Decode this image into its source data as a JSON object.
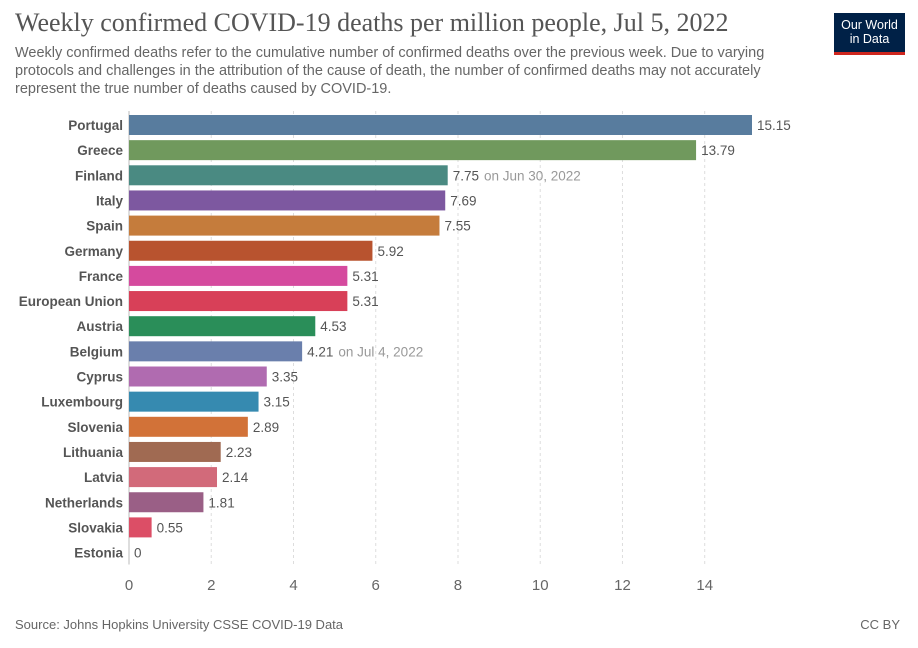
{
  "header": {
    "title": "Weekly confirmed COVID-19 deaths per million people, Jul 5, 2022",
    "subtitle": "Weekly confirmed deaths refer to the cumulative number of confirmed deaths over the previous week. Due to varying protocols and challenges in the attribution of the cause of death, the number of confirmed deaths may not accurately represent the true number of deaths caused by COVID-19.",
    "logo_line1": "Our World",
    "logo_line2": "in Data"
  },
  "footer": {
    "source": "Source: Johns Hopkins University CSSE COVID-19 Data",
    "license": "CC BY"
  },
  "chart_data": {
    "type": "bar",
    "orientation": "horizontal",
    "title": "Weekly confirmed COVID-19 deaths per million people, Jul 5, 2022",
    "xlabel": "",
    "ylabel": "",
    "xlim": [
      0,
      15.15
    ],
    "xticks": [
      0,
      2,
      4,
      6,
      8,
      10,
      12,
      14
    ],
    "grid": true,
    "categories": [
      "Portugal",
      "Greece",
      "Finland",
      "Italy",
      "Spain",
      "Germany",
      "France",
      "European Union",
      "Austria",
      "Belgium",
      "Cyprus",
      "Luxembourg",
      "Slovenia",
      "Lithuania",
      "Latvia",
      "Netherlands",
      "Slovakia",
      "Estonia"
    ],
    "values": [
      15.15,
      13.79,
      7.75,
      7.69,
      7.55,
      5.92,
      5.31,
      5.31,
      4.53,
      4.21,
      3.35,
      3.15,
      2.89,
      2.23,
      2.14,
      1.81,
      0.55,
      0
    ],
    "value_labels": [
      "15.15",
      "13.79",
      "7.75",
      "7.69",
      "7.55",
      "5.92",
      "5.31",
      "5.31",
      "4.53",
      "4.21",
      "3.35",
      "3.15",
      "2.89",
      "2.23",
      "2.14",
      "1.81",
      "0.55",
      "0"
    ],
    "annotations": [
      "",
      "",
      "on Jun 30, 2022",
      "",
      "",
      "",
      "",
      "",
      "",
      "on Jul 4, 2022",
      "",
      "",
      "",
      "",
      "",
      "",
      "",
      ""
    ],
    "colors": [
      "#587c9e",
      "#70995d",
      "#4a8a82",
      "#7d58a0",
      "#c57c3c",
      "#b8532f",
      "#d54a9e",
      "#d84058",
      "#2a8e59",
      "#6a7fac",
      "#b06bb0",
      "#368ab0",
      "#d27238",
      "#a06a52",
      "#d26a7a",
      "#9a5f86",
      "#dc4e66",
      "#999999"
    ]
  }
}
